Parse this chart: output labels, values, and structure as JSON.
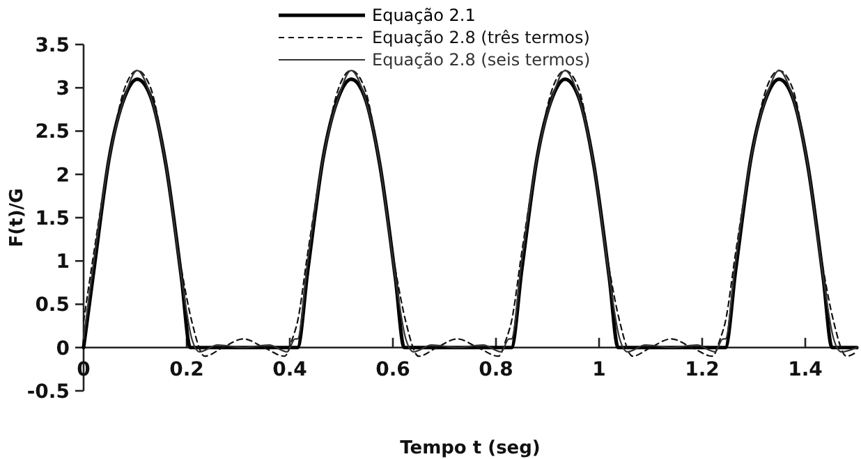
{
  "chart_data": {
    "type": "line",
    "xlabel": "Tempo t (seg)",
    "ylabel": "F(t)/G",
    "xlim": [
      0,
      1.5
    ],
    "xticks": [
      0,
      0.2,
      0.4,
      0.6,
      0.8,
      1,
      1.2,
      1.4
    ],
    "ylim": [
      -0.5,
      3.5
    ],
    "yticks": [
      -0.5,
      0,
      0.5,
      1,
      1.5,
      2,
      2.5,
      3,
      3.5
    ],
    "grid": false,
    "legend": "top",
    "marker": "none",
    "series": [
      {
        "name": "Equação 2.1",
        "color": "#000000",
        "line_style": "solid",
        "x": [
          0,
          0.02,
          0.05,
          0.08,
          0.104,
          0.13,
          0.16,
          0.19,
          0.207,
          0.415,
          0.435,
          0.465,
          0.495,
          0.519,
          0.545,
          0.575,
          0.605,
          0.622,
          0.83,
          0.85,
          0.88,
          0.91,
          0.934,
          0.96,
          0.99,
          1.02,
          1.037,
          1.245,
          1.265,
          1.295,
          1.325,
          1.349,
          1.375,
          1.405,
          1.435,
          1.452,
          1.5
        ],
        "values": [
          0,
          0.9,
          2.2,
          2.9,
          3.1,
          2.9,
          2.1,
          0.8,
          0,
          0,
          0.9,
          2.2,
          2.9,
          3.1,
          2.9,
          2.1,
          0.8,
          0,
          0,
          0.9,
          2.2,
          2.9,
          3.1,
          2.9,
          2.1,
          0.8,
          0,
          0,
          0.9,
          2.2,
          2.9,
          3.1,
          2.9,
          2.1,
          0.8,
          0,
          0
        ]
      },
      {
        "name": "Equação 2.8 (três termos)",
        "color": "#111111",
        "line_style": "dashed",
        "x": [
          0,
          0.02,
          0.05,
          0.08,
          0.104,
          0.13,
          0.16,
          0.19,
          0.21,
          0.235,
          0.27,
          0.31,
          0.35,
          0.39,
          0.405,
          0.415,
          0.435,
          0.465,
          0.495,
          0.519,
          0.545,
          0.575,
          0.605,
          0.625,
          0.65,
          0.685,
          0.725,
          0.765,
          0.805,
          0.82,
          0.83,
          0.85,
          0.88,
          0.91,
          0.934,
          0.96,
          0.99,
          1.02,
          1.04,
          1.065,
          1.1,
          1.14,
          1.18,
          1.22,
          1.235,
          1.245,
          1.265,
          1.295,
          1.325,
          1.349,
          1.375,
          1.405,
          1.435,
          1.455,
          1.48,
          1.5
        ],
        "values": [
          0.3,
          1.1,
          2.2,
          3.0,
          3.2,
          3.0,
          2.1,
          0.9,
          0.3,
          -0.1,
          0.0,
          0.1,
          0.0,
          -0.1,
          0.1,
          0.3,
          1.1,
          2.2,
          3.0,
          3.2,
          3.0,
          2.1,
          0.9,
          0.3,
          -0.1,
          0.0,
          0.1,
          0.0,
          -0.1,
          0.1,
          0.3,
          1.1,
          2.2,
          3.0,
          3.2,
          3.0,
          2.1,
          0.9,
          0.3,
          -0.1,
          0.0,
          0.1,
          0.0,
          -0.1,
          0.1,
          0.3,
          1.1,
          2.2,
          3.0,
          3.2,
          3.0,
          2.1,
          0.9,
          0.3,
          -0.1,
          -0.05
        ]
      },
      {
        "name": "Equação 2.8 (seis termos)",
        "color": "#333333",
        "line_style": "solid",
        "x": [
          0,
          0.02,
          0.05,
          0.08,
          0.104,
          0.13,
          0.16,
          0.19,
          0.21,
          0.225,
          0.26,
          0.31,
          0.36,
          0.395,
          0.41,
          0.415,
          0.435,
          0.465,
          0.495,
          0.519,
          0.545,
          0.575,
          0.605,
          0.625,
          0.64,
          0.675,
          0.725,
          0.775,
          0.81,
          0.825,
          0.83,
          0.85,
          0.88,
          0.91,
          0.934,
          0.96,
          0.99,
          1.02,
          1.04,
          1.055,
          1.09,
          1.14,
          1.19,
          1.225,
          1.24,
          1.245,
          1.265,
          1.295,
          1.325,
          1.349,
          1.375,
          1.405,
          1.435,
          1.455,
          1.47,
          1.5
        ],
        "values": [
          0.1,
          1.0,
          2.2,
          2.9,
          3.2,
          2.9,
          2.1,
          0.8,
          0.1,
          -0.05,
          0.03,
          0.0,
          0.03,
          -0.05,
          0.1,
          0.1,
          1.0,
          2.2,
          2.9,
          3.2,
          2.9,
          2.1,
          0.8,
          0.1,
          -0.05,
          0.03,
          0.0,
          0.03,
          -0.05,
          0.1,
          0.1,
          1.0,
          2.2,
          2.9,
          3.2,
          2.9,
          2.1,
          0.8,
          0.1,
          -0.05,
          0.03,
          0.0,
          0.03,
          -0.05,
          0.1,
          0.1,
          1.0,
          2.2,
          2.9,
          3.2,
          2.9,
          2.1,
          0.8,
          0.1,
          -0.05,
          0.0
        ]
      }
    ]
  }
}
